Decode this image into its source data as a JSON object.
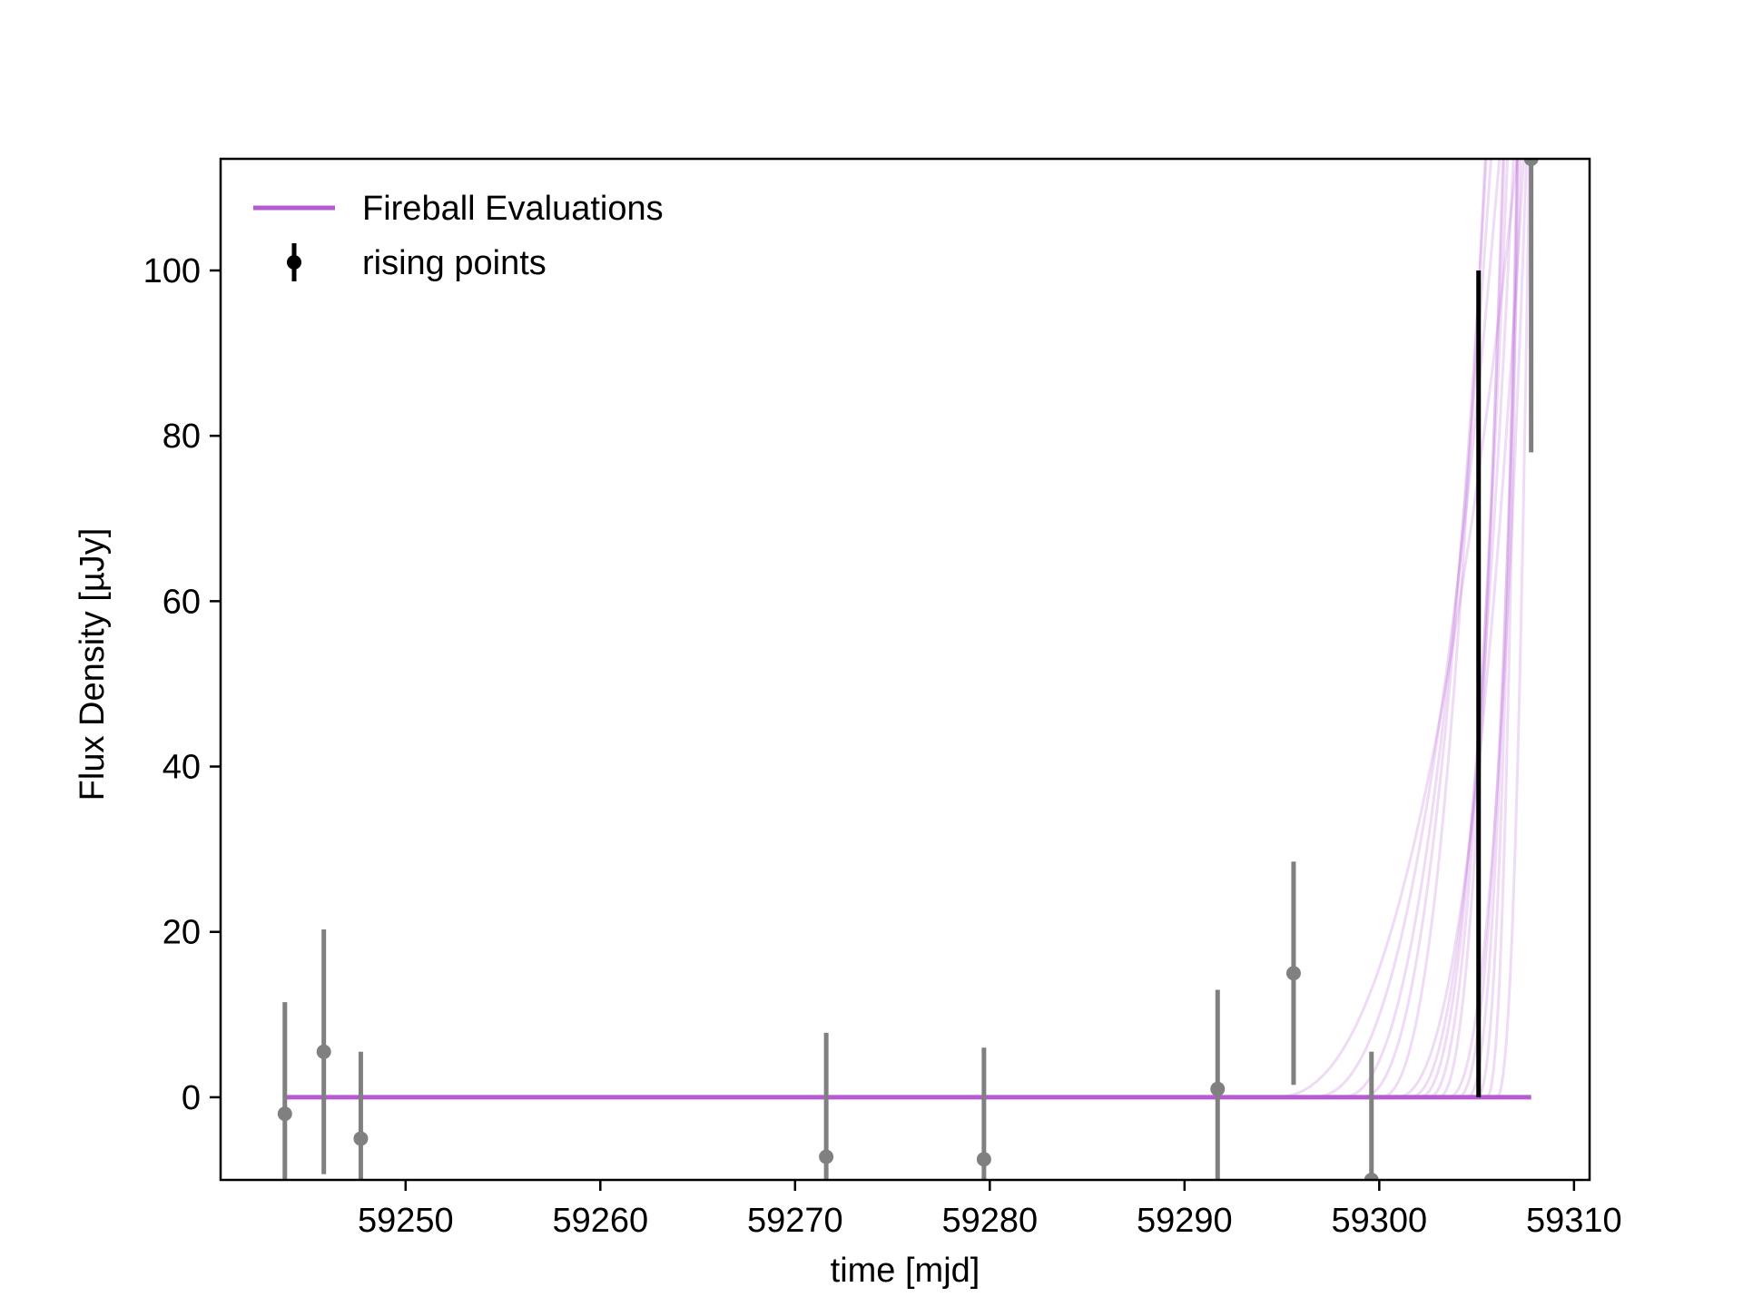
{
  "chart_data": {
    "type": "scatter",
    "title": "",
    "xlabel": "time [mjd]",
    "ylabel": "Flux Density [µJy]",
    "xlim": [
      59240.5,
      59310.8
    ],
    "ylim": [
      -10.0,
      113.5
    ],
    "xticks": [
      59250,
      59260,
      59270,
      59280,
      59290,
      59300,
      59310
    ],
    "yticks": [
      0,
      20,
      40,
      60,
      80,
      100
    ],
    "grid": false,
    "legend_placement": "top-left",
    "legend": [
      {
        "label": "Fireball Evaluations",
        "kind": "line",
        "color": "#b65ad4"
      },
      {
        "label": "rising points",
        "kind": "errorbar",
        "color": "#000000"
      }
    ],
    "colors": {
      "fireball": "#b65ad4",
      "points": "#808080",
      "rising": "#000000"
    },
    "series": [
      {
        "name": "Fireball Evaluations",
        "kind": "model_curves",
        "baseline": 0,
        "x_start": 59243.8,
        "x_end": 59307.8,
        "rise_onsets": [
          59294.5,
          59296.5,
          59298.0,
          59299.0,
          59300.0,
          59300.8,
          59301.5,
          59302.0,
          59302.5,
          59303.0,
          59303.5,
          59304.0,
          59304.5,
          59305.0,
          59305.5,
          59306.0
        ]
      },
      {
        "name": "data points",
        "kind": "errorbar",
        "points": [
          {
            "x": 59243.8,
            "y": -2.0,
            "yerr": 13.5
          },
          {
            "x": 59245.8,
            "y": 5.5,
            "yerr": 14.8
          },
          {
            "x": 59247.7,
            "y": -5.0,
            "yerr": 10.5
          },
          {
            "x": 59271.6,
            "y": -7.2,
            "yerr": 15.0
          },
          {
            "x": 59279.7,
            "y": -7.5,
            "yerr": 13.5
          },
          {
            "x": 59291.7,
            "y": 1.0,
            "yerr": 12.0
          },
          {
            "x": 59295.6,
            "y": 15.0,
            "yerr": 13.5
          },
          {
            "x": 59299.6,
            "y": -10.0,
            "yerr": 15.5
          },
          {
            "x": 59307.8,
            "y": 113.5,
            "yerr": 35.5
          }
        ]
      },
      {
        "name": "rising points",
        "kind": "errorbar",
        "points": [
          {
            "x": 59305.1,
            "y": 50.0,
            "yerr": 50.0
          }
        ]
      }
    ]
  }
}
